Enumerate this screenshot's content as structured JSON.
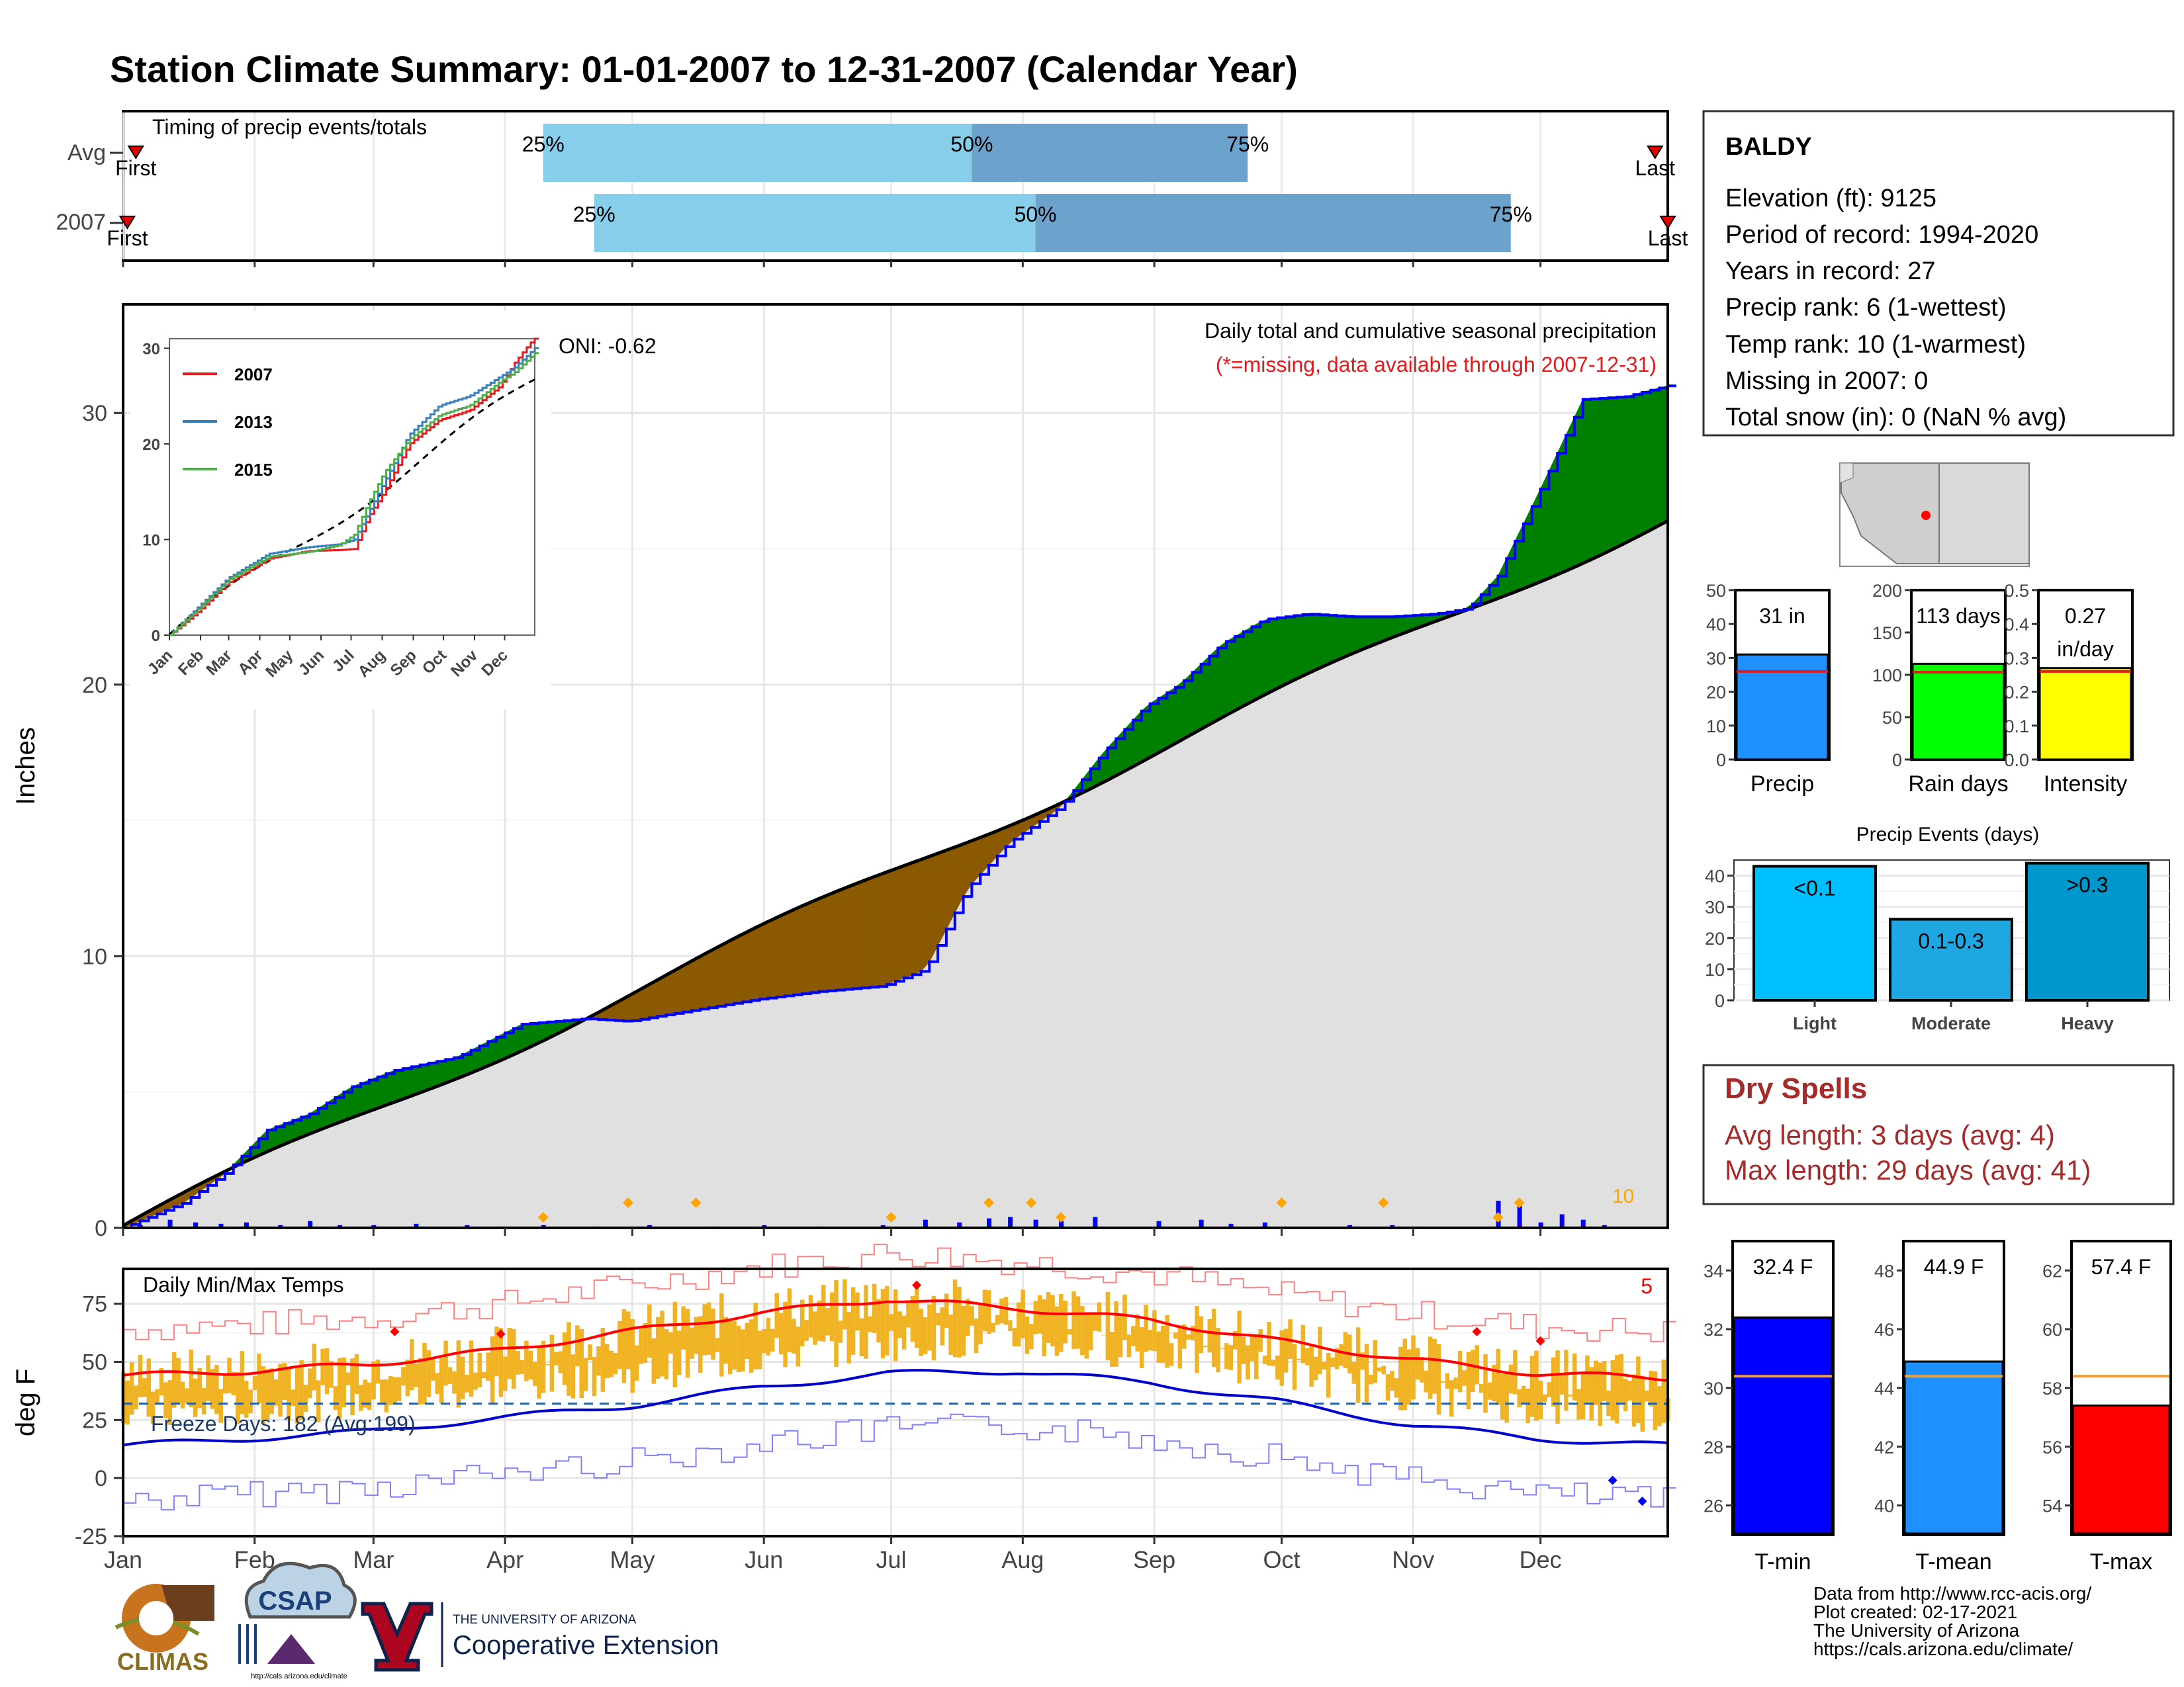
{
  "title": "Station Climate Summary: 01-01-2007 to 12-31-2007 (Calendar Year)",
  "colors": {
    "title": "#000080",
    "year_2007": "#e41a1c",
    "year_2013": "#377eb8",
    "year_2015": "#4daf4a",
    "above_avg_fill": "#008000",
    "below_avg_fill": "#8b5a00",
    "avg_fill": "#e0e0e0",
    "daily_bar": "#0000ff",
    "timing_light": "#87ceeb",
    "timing_dark": "#6ba3cc",
    "temp_band": "#f0b323",
    "tmax_line": "#ff0000",
    "tmin_line": "#0000cd",
    "dry_spells": "#a52a2a",
    "record_marker": "#ffa500"
  },
  "timing_panel": {
    "title": "Timing of precip events/totals",
    "rows": [
      {
        "label": "Avg",
        "first_label": "First",
        "last_label": "Last",
        "first_doy": 4,
        "last_doy": 362,
        "markers": [
          {
            "label": "25%",
            "doy": 100
          },
          {
            "label": "50%",
            "doy": 201
          },
          {
            "label": "75%",
            "doy": 266
          }
        ]
      },
      {
        "label": "2007",
        "first_label": "First",
        "last_label": "Last",
        "first_doy": 2,
        "last_doy": 365,
        "markers": [
          {
            "label": "25%",
            "doy": 112
          },
          {
            "label": "50%",
            "doy": 216
          },
          {
            "label": "75%",
            "doy": 328
          }
        ]
      }
    ]
  },
  "precip_panel": {
    "title": "Daily total and cumulative seasonal precipitation",
    "note": "(*=missing, data available through 2007-12-31)",
    "oni": "ONI: -0.62",
    "ylabel": "Inches",
    "yticks": [
      "0",
      "10",
      "20",
      "30"
    ],
    "count_label": "10"
  },
  "inset": {
    "legend": [
      "2007",
      "2013",
      "2015"
    ],
    "yticks": [
      "0",
      "10",
      "20",
      "30"
    ],
    "months": [
      "Jan",
      "Feb",
      "Mar",
      "Apr",
      "May",
      "Jun",
      "Jul",
      "Aug",
      "Sep",
      "Oct",
      "Nov",
      "Dec"
    ]
  },
  "temp_panel": {
    "title": "Daily Min/Max Temps",
    "ylabel": "deg F",
    "yticks": [
      "-25",
      "0",
      "25",
      "50",
      "75"
    ],
    "freeze_label": "Freeze Days: 182 (Avg:199)",
    "count_label": "5"
  },
  "months": [
    "Jan",
    "Feb",
    "Mar",
    "Apr",
    "May",
    "Jun",
    "Jul",
    "Aug",
    "Sep",
    "Oct",
    "Nov",
    "Dec"
  ],
  "station": {
    "name": "BALDY",
    "lines": [
      "Elevation (ft): 9125",
      "Period of record: 1994-2020",
      "Years in record: 27",
      "Precip rank: 6 (1-wettest)",
      "Temp rank: 10 (1-warmest)",
      "Missing in 2007: 0",
      "Total snow (in): 0 (NaN % avg)"
    ]
  },
  "summary_bars": [
    {
      "label": "Precip",
      "value_label": "31 in",
      "yticks": [
        "0",
        "10",
        "20",
        "30",
        "40",
        "50"
      ]
    },
    {
      "label": "Rain days",
      "value_label": "113 days",
      "yticks": [
        "0",
        "50",
        "100",
        "150",
        "200"
      ]
    },
    {
      "label": "Intensity",
      "value_label": "0.27",
      "value_label2": "in/day",
      "yticks": [
        "0.0",
        "0.1",
        "0.2",
        "0.3",
        "0.4",
        "0.5"
      ]
    }
  ],
  "events_panel": {
    "title": "Precip Events (days)",
    "yticks": [
      "0",
      "10",
      "20",
      "30",
      "40"
    ]
  },
  "dry_spells": {
    "title": "Dry Spells",
    "avg": "Avg length: 3 days (avg: 4)",
    "max": "Max length: 29 days (avg: 41)"
  },
  "temp_bars": [
    {
      "label": "T-min",
      "value_label": "32.4 F",
      "yticks": [
        "26",
        "28",
        "30",
        "32",
        "34"
      ]
    },
    {
      "label": "T-mean",
      "value_label": "44.9 F",
      "yticks": [
        "40",
        "42",
        "44",
        "46",
        "48"
      ]
    },
    {
      "label": "T-max",
      "value_label": "57.4 F",
      "yticks": [
        "54",
        "56",
        "58",
        "60",
        "62"
      ]
    }
  ],
  "credits": [
    "Data from http://www.rcc-acis.org/",
    "Plot created: 02-17-2021",
    "The University of Arizona",
    "https://cals.arizona.edu/climate/"
  ],
  "logos": {
    "climas": "CLIMAS",
    "csap": "CSAP",
    "csap_url": "http://cals.arizona.edu/climate",
    "ua_line1": "THE UNIVERSITY OF ARIZONA",
    "ua_line2": "Cooperative Extension"
  },
  "chart_data": [
    {
      "type": "area",
      "title": "Daily total and cumulative seasonal precipitation",
      "ylabel": "Inches",
      "ylim": [
        0,
        34
      ],
      "x_units": "day of year",
      "series": [
        {
          "name": "2007",
          "x": [
            1,
            15,
            25,
            35,
            45,
            55,
            65,
            80,
            95,
            110,
            120,
            135,
            150,
            165,
            180,
            190,
            200,
            210,
            222,
            232,
            242,
            250,
            260,
            270,
            280,
            290,
            300,
            310,
            318,
            325,
            335,
            345,
            355,
            365
          ],
          "values": [
            0,
            0.9,
            2.0,
            3.6,
            4.2,
            5.2,
            5.8,
            6.3,
            7.5,
            7.7,
            7.6,
            8.0,
            8.4,
            8.7,
            8.9,
            9.5,
            12.5,
            14.2,
            15.5,
            17.5,
            19.2,
            20.0,
            21.5,
            22.4,
            22.6,
            22.5,
            22.5,
            22.6,
            22.8,
            24.0,
            27.2,
            30.5,
            30.6,
            31.0
          ]
        }
      ],
      "bars": {
        "name": "Daily precipitation",
        "x": [
          5,
          12,
          18,
          24,
          30,
          38,
          45,
          52,
          60,
          70,
          82,
          91,
          100,
          112,
          125,
          140,
          152,
          165,
          180,
          190,
          198,
          205,
          210,
          216,
          222,
          230,
          245,
          255,
          262,
          270,
          290,
          300,
          325,
          330,
          335,
          340,
          345,
          350
        ],
        "values": [
          0.1,
          0.3,
          0.2,
          0.15,
          0.2,
          0.1,
          0.25,
          0.1,
          0.1,
          0.15,
          0.1,
          0.05,
          0.1,
          0.05,
          0.1,
          0.05,
          0.1,
          0.05,
          0.1,
          0.3,
          0.2,
          0.35,
          0.4,
          0.3,
          0.25,
          0.4,
          0.25,
          0.3,
          0.15,
          0.2,
          0.1,
          0.1,
          1.0,
          0.8,
          0.2,
          0.5,
          0.3,
          0.1
        ]
      }
    },
    {
      "type": "line",
      "ylim": [
        0,
        31
      ],
      "x_units": "day of year",
      "series": [
        {
          "name": "2007",
          "x": [
            1,
            30,
            60,
            100,
            140,
            170,
            185,
            200,
            215,
            240,
            270,
            300,
            330,
            345,
            360,
            365
          ],
          "values": [
            0,
            2.5,
            5.5,
            8,
            8.8,
            8.9,
            9,
            12.5,
            15,
            20,
            22.5,
            23.5,
            26,
            28.5,
            30.5,
            31
          ]
        },
        {
          "name": "2013",
          "x": [
            1,
            30,
            60,
            100,
            140,
            170,
            185,
            200,
            215,
            240,
            270,
            300,
            330,
            345,
            360,
            365
          ],
          "values": [
            0,
            3,
            6,
            8.5,
            9.2,
            9.5,
            10,
            13,
            16,
            21,
            24,
            25,
            27,
            28,
            29.5,
            30
          ]
        },
        {
          "name": "2015",
          "x": [
            1,
            30,
            60,
            100,
            140,
            170,
            185,
            200,
            215,
            240,
            270,
            300,
            330,
            345,
            360,
            365
          ],
          "values": [
            0,
            2.8,
            5.8,
            8.2,
            8.7,
            9.4,
            10.5,
            14,
            17,
            20.5,
            23,
            24,
            26.5,
            27.5,
            29,
            29.5
          ]
        }
      ]
    },
    {
      "type": "line",
      "title": "Daily Min/Max Temps",
      "ylabel": "deg F",
      "ylim": [
        -25,
        90
      ],
      "x_units": "day of year",
      "series": [
        {
          "name": "avg max",
          "x": [
            1,
            31,
            59,
            90,
            120,
            151,
            181,
            212,
            243,
            273,
            304,
            334,
            365
          ],
          "values": [
            44,
            46,
            49,
            55,
            63,
            71,
            77,
            73,
            68,
            59,
            51,
            45,
            43
          ]
        },
        {
          "name": "avg min",
          "x": [
            1,
            31,
            59,
            90,
            120,
            151,
            181,
            212,
            243,
            273,
            304,
            334,
            365
          ],
          "values": [
            14,
            17,
            20,
            26,
            31,
            39,
            45,
            46,
            41,
            33,
            23,
            17,
            14
          ]
        },
        {
          "name": "freeze threshold",
          "x": [
            1,
            365
          ],
          "values": [
            32,
            32
          ]
        }
      ]
    },
    {
      "type": "bar",
      "categories": [
        "Precip",
        "Rain days",
        "Intensity"
      ],
      "values": [
        31,
        113,
        0.27
      ],
      "averages": [
        26,
        103,
        0.26
      ],
      "ylims": [
        [
          0,
          50
        ],
        [
          0,
          200
        ],
        [
          0,
          0.5
        ]
      ]
    },
    {
      "type": "bar",
      "title": "Precip Events (days)",
      "categories": [
        "Light",
        "Moderate",
        "Heavy"
      ],
      "bar_labels": [
        "<0.1",
        "0.1-0.3",
        ">0.3"
      ],
      "values": [
        43,
        26,
        44
      ],
      "ylim": [
        0,
        45
      ]
    },
    {
      "type": "bar",
      "categories": [
        "T-min",
        "T-mean",
        "T-max"
      ],
      "values": [
        32.4,
        44.9,
        57.4
      ],
      "averages": [
        30.4,
        44.4,
        58.4
      ],
      "ylims": [
        [
          25,
          35
        ],
        [
          39,
          49
        ],
        [
          53,
          63
        ]
      ]
    }
  ]
}
